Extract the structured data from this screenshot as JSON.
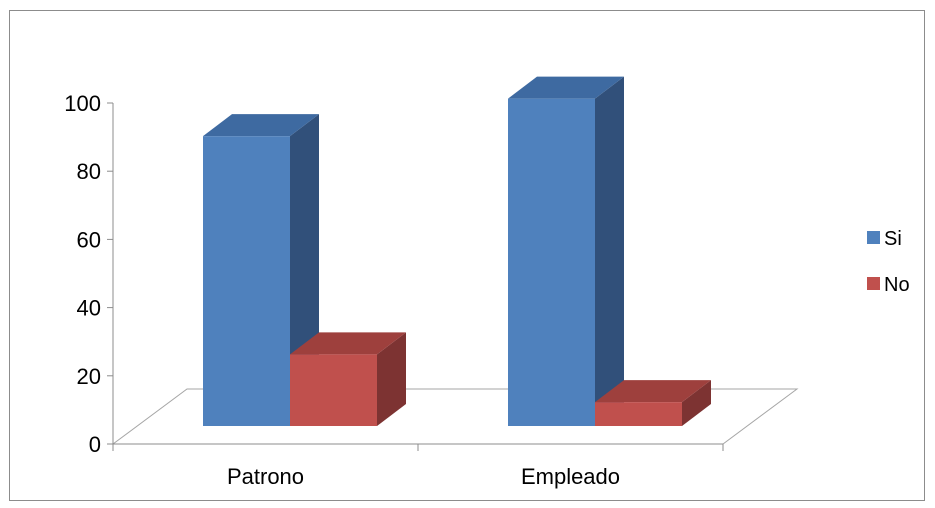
{
  "chart_data": {
    "type": "bar",
    "categories": [
      "Patrono",
      "Empleado"
    ],
    "series": [
      {
        "name": "Si",
        "values": [
          85,
          96
        ],
        "color": "#4F81BD",
        "side_color": "#31507A",
        "top_color": "#3E6AA1"
      },
      {
        "name": "No",
        "values": [
          21,
          7
        ],
        "color": "#C0504D",
        "side_color": "#7D3332",
        "top_color": "#9E403D"
      }
    ],
    "ylim": [
      0,
      100
    ],
    "yticks": [
      "0",
      "20",
      "40",
      "60",
      "80",
      "100"
    ],
    "legend_position": "right",
    "grid": false
  }
}
